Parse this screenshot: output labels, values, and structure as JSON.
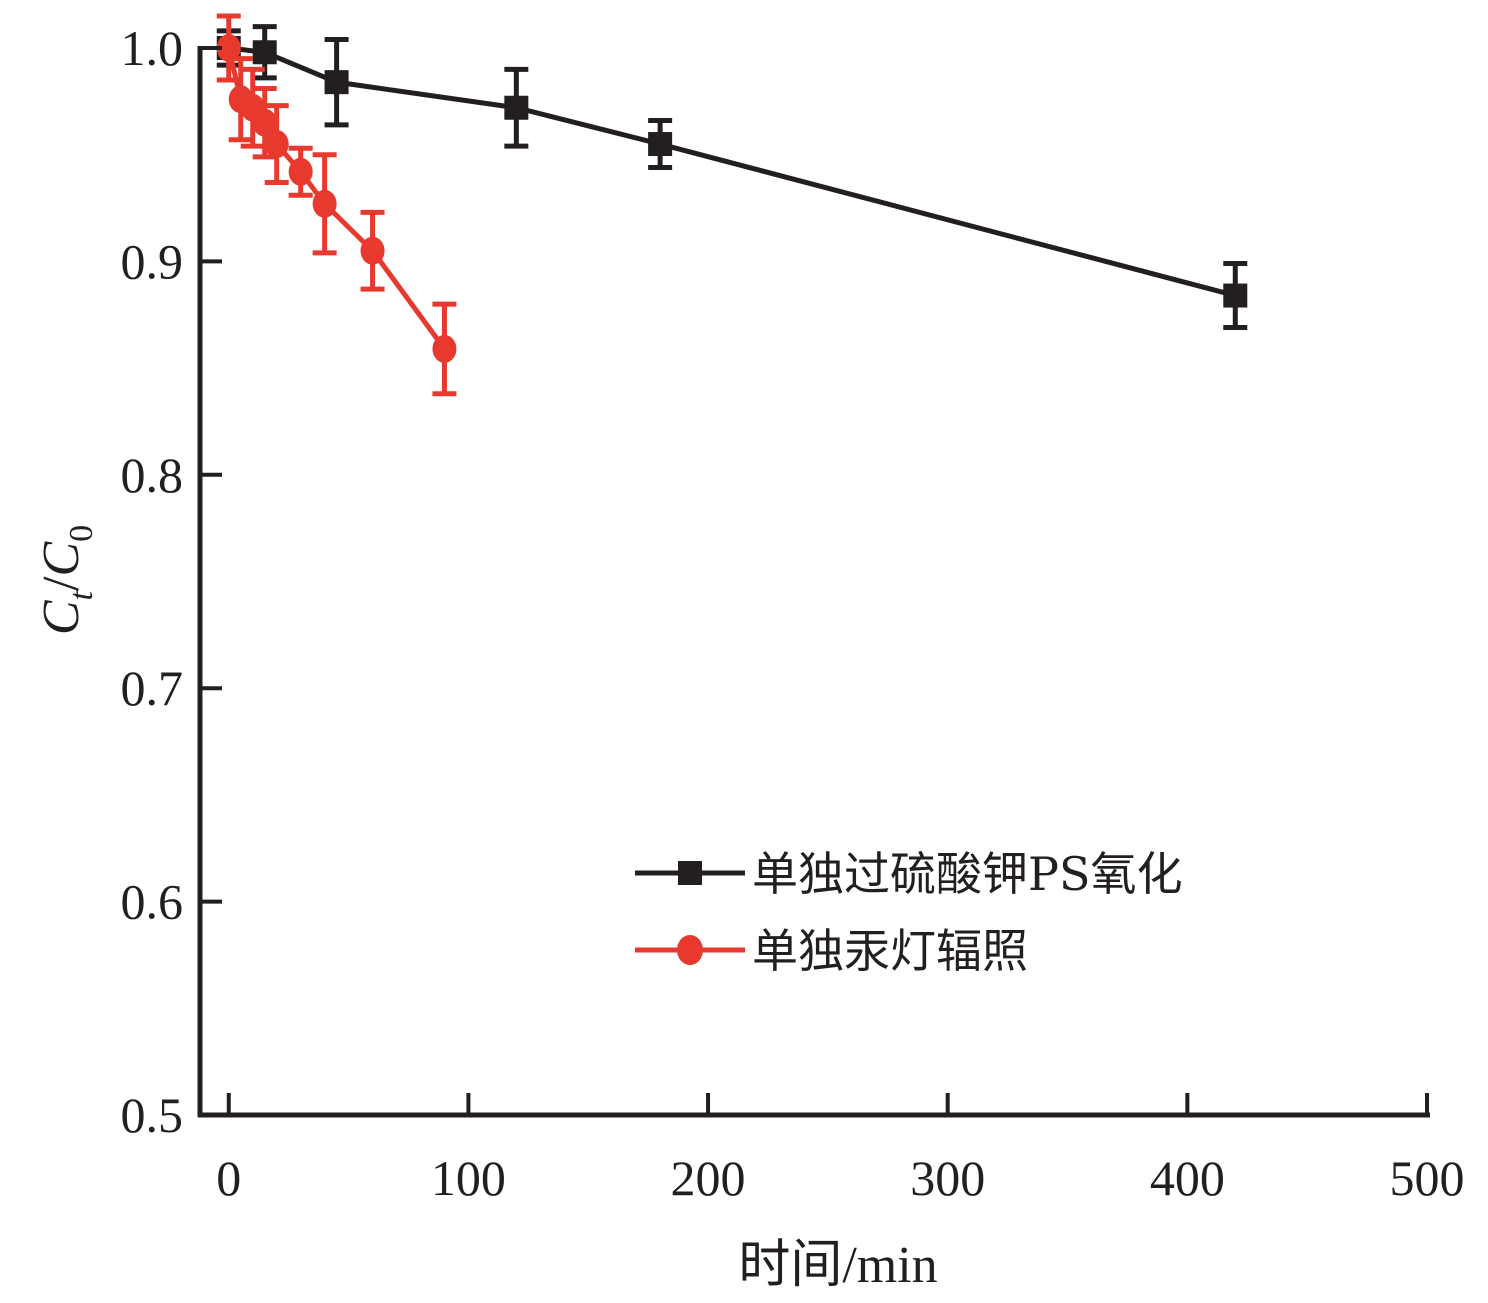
{
  "chart_data": {
    "type": "line",
    "title": "",
    "xlabel": "时间/min",
    "ylabel": "Ct/C0",
    "ylabel_parts": {
      "main1": "C",
      "sub1": "t",
      "slash": "/",
      "main2": "C",
      "sub2": "0"
    },
    "xlim": [
      -12,
      500
    ],
    "ylim": [
      0.5,
      1.0
    ],
    "xticks": [
      "0",
      "100",
      "200",
      "300",
      "400",
      "500"
    ],
    "xtick_values": [
      0,
      100,
      200,
      300,
      400,
      500
    ],
    "yticks": [
      "0.5",
      "0.6",
      "0.7",
      "0.8",
      "0.9",
      "1.0"
    ],
    "ytick_values": [
      0.5,
      0.6,
      0.7,
      0.8,
      0.9,
      1.0
    ],
    "grid": false,
    "legend_position": "lower-right",
    "series": [
      {
        "name": "单独过硫酸钾PS氧化",
        "color": "#231f20",
        "marker": "square",
        "x": [
          0,
          15,
          45,
          120,
          180,
          420
        ],
        "y": [
          1.0,
          0.998,
          0.984,
          0.972,
          0.955,
          0.884
        ],
        "err": [
          0.008,
          0.012,
          0.02,
          0.018,
          0.011,
          0.015
        ]
      },
      {
        "name": "单独汞灯辐照",
        "color": "#e8392f",
        "marker": "circle",
        "x": [
          0,
          5,
          10,
          15,
          20,
          30,
          40,
          60,
          90
        ],
        "y": [
          1.0,
          0.976,
          0.972,
          0.965,
          0.955,
          0.942,
          0.927,
          0.905,
          0.859
        ],
        "err": [
          0.015,
          0.019,
          0.018,
          0.016,
          0.018,
          0.011,
          0.023,
          0.018,
          0.021
        ]
      }
    ]
  }
}
